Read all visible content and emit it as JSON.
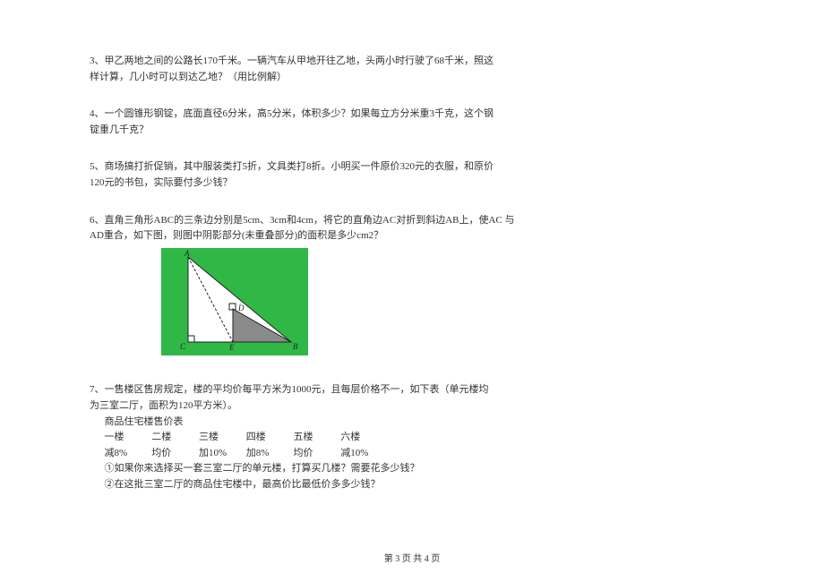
{
  "problems": {
    "p3": {
      "line1": "3、甲乙两地之间的公路长170千米。一辆汽车从甲地开往乙地，头两小时行驶了68千米，照这",
      "line2": "样计算，几小时可以到达乙地？（用比例解）"
    },
    "p4": {
      "line1": "4、一个圆锥形钢锭，底面直径6分米，高5分米，体积多少？如果每立方分米重3千克，这个钢",
      "line2": "锭重几千克？"
    },
    "p5": {
      "line1": "5、商场搞打折促销，其中服装类打5折，文具类打8折。小明买一件原价320元的衣服，和原价",
      "line2": "120元的书包，实际要付多少钱？"
    },
    "p6": {
      "line1": "6、直角三角形ABC的三条边分别是5cm、3cm和4cm，将它的直角边AC对折到斜边AB上，使AC 与",
      "line2": "AD重合，如下图，则图中阴影部分(未重叠部分)的面积是多少cm2？",
      "figure": {
        "bg_color": "#2fb846",
        "triangle_fill": "#ffffff",
        "line_color": "#222222",
        "shadow_fill": "#8a8a8a",
        "labels": {
          "A": "A",
          "B": "B",
          "C": "C",
          "D": "D",
          "E": "E"
        },
        "width": 164,
        "height": 120
      }
    },
    "p7": {
      "line1": "7、一售楼区售房规定，楼的平均价每平方米为1000元，且每层价格不一，如下表（单元楼均",
      "line2": "为三室二厅，面积为120平方米）。",
      "table_title": "商品住宅楼售价表",
      "header": {
        "c1": "一楼",
        "c2": "二楼",
        "c3": "三楼",
        "c4": "四楼",
        "c5": "五楼",
        "c6": "六楼"
      },
      "row": {
        "c1": "减8%",
        "c2": "均价",
        "c3": "加10%",
        "c4": "加8%",
        "c5": "均价",
        "c6": "减10%"
      },
      "q1": "①如果你来选择买一套三室二厅的单元楼，打算买几楼？需要花多少钱？",
      "q2": "②在这批三室二厅的商品住宅楼中，最高价比最低价多多少钱？"
    }
  },
  "footer": "第 3 页 共 4 页"
}
